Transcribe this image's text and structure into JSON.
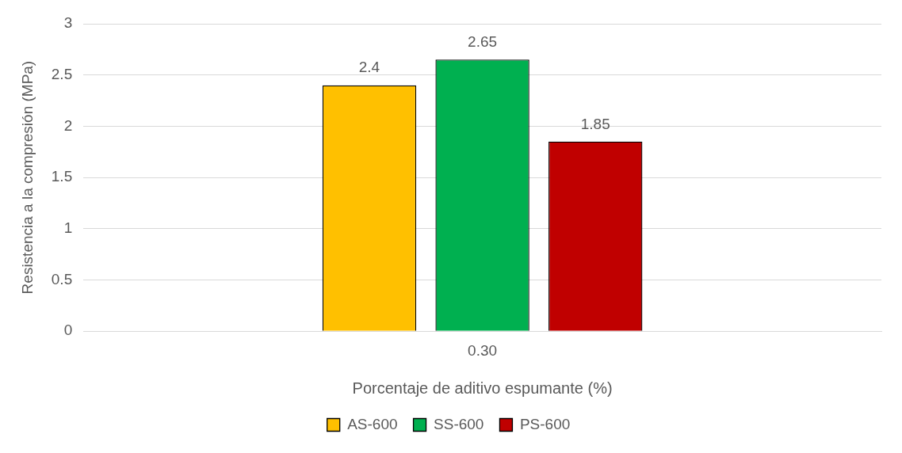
{
  "chart_data": {
    "type": "bar",
    "xlabel": "Porcentaje de aditivo espumante (%)",
    "ylabel": "Resistencia a la compresión (MPa)",
    "categories": [
      "0.30"
    ],
    "series": [
      {
        "name": "AS-600",
        "color": "#ffc000",
        "values": [
          2.4
        ]
      },
      {
        "name": "SS-600",
        "color": "#00b050",
        "values": [
          2.65
        ]
      },
      {
        "name": "PS-600",
        "color": "#c00000",
        "values": [
          1.85
        ]
      }
    ],
    "ylim": [
      0,
      3
    ],
    "yticks": [
      0,
      0.5,
      1,
      1.5,
      2,
      2.5,
      3
    ],
    "grid": "y",
    "legend": "bottom",
    "data_labels": true
  }
}
